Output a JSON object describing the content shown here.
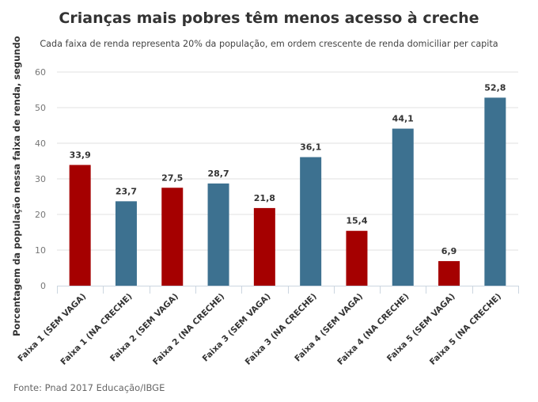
{
  "chart_data": {
    "type": "bar",
    "title": "Crianças mais pobres têm menos acesso à creche",
    "subtitle": "Cada faixa de renda representa 20% da população, em ordem crescente de renda domiciliar per capita",
    "xlabel": "",
    "ylabel": "Porcentagem da população nessa faixa de renda, segundo",
    "ylim": [
      0,
      60
    ],
    "yticks": [
      "0",
      "10",
      "20",
      "30",
      "40",
      "50",
      "60"
    ],
    "grid": true,
    "categories": [
      "Faixa 1 (SEM VAGA)",
      "Faixa 1 (NA CRECHE)",
      "Faixa 2 (SEM VAGA)",
      "Faixa 2 (NA CRECHE)",
      "Faixa 3 (SEM VAGA)",
      "Faixa 3 (NA CRECHE)",
      "Faixa 4 (SEM VAGA)",
      "Faixa 4 (NA CRECHE)",
      "Faixa 5 (SEM VAGA)",
      "Faixa 5 (NA CRECHE)"
    ],
    "values": [
      33.9,
      23.7,
      27.5,
      28.7,
      21.8,
      36.1,
      15.4,
      44.1,
      6.9,
      52.8
    ],
    "labels": [
      "33,9",
      "23,7",
      "27,5",
      "28,7",
      "21,8",
      "36,1",
      "15,4",
      "44,1",
      "6,9",
      "52,8"
    ],
    "colors": [
      "#a50000",
      "#3d7190",
      "#a50000",
      "#3d7190",
      "#a50000",
      "#3d7190",
      "#a50000",
      "#3d7190",
      "#a50000",
      "#3d7190"
    ]
  },
  "source": "Fonte: Pnad 2017 Educação/IBGE"
}
